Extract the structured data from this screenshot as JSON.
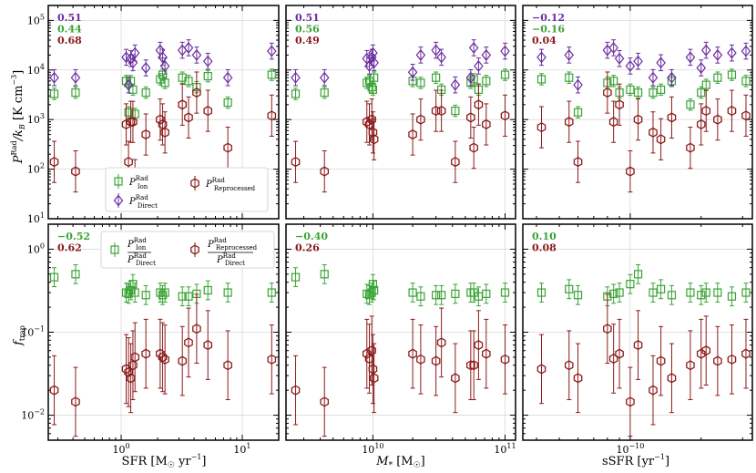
{
  "colors": {
    "ion": "#3aa335",
    "direct": "#6a2c9e",
    "reprocessed": "#8b1a1a",
    "grid": "#d9d9d9"
  },
  "axis_labels": {
    "top_y": "P^Rad/k_B [K cm^-3]",
    "bottom_y": "f_trap",
    "x": [
      "SFR [M☉ yr⁻¹]",
      "M* [M☉]",
      "sSFR [yr⁻¹]"
    ]
  },
  "legend_top": {
    "ion": {
      "main": "P",
      "sup": "Rad",
      "sub": "Ion"
    },
    "direct": {
      "main": "P",
      "sup": "Rad",
      "sub": "Direct"
    },
    "reprocessed": {
      "main": "P",
      "sup": "Rad",
      "sub": "Reprocessed"
    }
  },
  "legend_bottom": {
    "ion_ratio": {
      "num_sub": "Ion",
      "den_sub": "Direct",
      "sup": "Rad"
    },
    "reproc_ratio": {
      "num_sub": "Reprocessed",
      "den_sub": "Direct",
      "sup": "Rad"
    }
  },
  "chart_data": [
    {
      "type": "scatter",
      "panel": "top-left",
      "xlabel": "SFR [M☉ yr⁻¹]",
      "ylabel": "P^Rad/k_B [K cm^-3]",
      "xscale": "log",
      "yscale": "log",
      "xlim": [
        0.25,
        20
      ],
      "ylim": [
        10,
        200000
      ],
      "x_ticks": [
        "10^0",
        "10^1"
      ],
      "y_ticks": [
        "10^1",
        "10^2",
        "10^3",
        "10^4",
        "10^5"
      ],
      "correlations": [
        "0.51",
        "0.44",
        "0.68"
      ],
      "x": [
        0.28,
        0.42,
        1.1,
        1.15,
        1.2,
        1.25,
        1.3,
        1.6,
        2.1,
        2.2,
        2.3,
        3.2,
        3.6,
        4.2,
        5.2,
        7.6,
        17.5
      ],
      "series": [
        {
          "name": "P_Ion",
          "values": [
            3300,
            3500,
            6000,
            1400,
            6000,
            4000,
            1300,
            3500,
            6500,
            8000,
            5500,
            7000,
            6000,
            4500,
            7500,
            2200,
            8000
          ]
        },
        {
          "name": "P_Direct",
          "values": [
            7000,
            7000,
            18000,
            5000,
            17000,
            14000,
            22000,
            11000,
            25000,
            18000,
            12000,
            25000,
            28000,
            20000,
            15000,
            7000,
            24000
          ]
        },
        {
          "name": "P_Reprocessed",
          "values": [
            140,
            90,
            800,
            140,
            900,
            900,
            60,
            500,
            1000,
            800,
            550,
            2000,
            1100,
            3500,
            1500,
            270,
            1200
          ]
        }
      ]
    },
    {
      "type": "scatter",
      "panel": "top-middle",
      "xlabel": "M* [M☉]",
      "xscale": "log",
      "yscale": "log",
      "xlim": [
        2200000000.0,
        120000000000.0
      ],
      "ylim": [
        10,
        200000
      ],
      "x_ticks": [
        "10^10",
        "10^11"
      ],
      "correlations": [
        "0.51",
        "0.56",
        "0.49"
      ],
      "x": [
        2600000000.0,
        4300000000.0,
        9000000000.0,
        9400000000.0,
        9800000000.0,
        10000000000.0,
        10200000000.0,
        20000000000.0,
        23000000000.0,
        30000000000.0,
        33000000000.0,
        42000000000.0,
        55000000000.0,
        58000000000.0,
        63000000000.0,
        72000000000.0,
        100000000000.0
      ],
      "series": [
        {
          "name": "P_Ion",
          "values": [
            3300,
            3500,
            5500,
            6000,
            4500,
            4000,
            7000,
            6000,
            5500,
            7000,
            4000,
            1500,
            5500,
            6500,
            4000,
            6000,
            8000
          ]
        },
        {
          "name": "P_Direct",
          "values": [
            7000,
            7000,
            17000,
            12000,
            18000,
            22000,
            14000,
            9000,
            20000,
            25000,
            18000,
            5000,
            7000,
            28000,
            12000,
            20000,
            24000
          ]
        },
        {
          "name": "P_Reprocessed",
          "values": [
            140,
            90,
            900,
            800,
            1000,
            550,
            400,
            500,
            1000,
            1500,
            1500,
            140,
            1100,
            270,
            2000,
            800,
            1200
          ]
        }
      ]
    },
    {
      "type": "scatter",
      "panel": "top-right",
      "xlabel": "sSFR [yr⁻¹]",
      "xscale": "log",
      "yscale": "log",
      "xlim": [
        3.5e-11,
        3.3e-10
      ],
      "ylim": [
        10,
        200000
      ],
      "x_ticks": [
        "10^-10"
      ],
      "correlations": [
        "−0.12",
        "−0.16",
        "0.04"
      ],
      "x": [
        4.2e-11,
        5.5e-11,
        6e-11,
        8e-11,
        8.5e-11,
        9e-11,
        1e-10,
        1.08e-10,
        1.25e-10,
        1.35e-10,
        1.5e-10,
        1.8e-10,
        2e-10,
        2.1e-10,
        2.35e-10,
        2.7e-10,
        3.1e-10
      ],
      "series": [
        {
          "name": "P_Ion",
          "values": [
            6500,
            7000,
            1400,
            5500,
            6000,
            3500,
            4000,
            3500,
            3500,
            4000,
            6000,
            2000,
            3500,
            5000,
            7000,
            8000,
            6000
          ]
        },
        {
          "name": "P_Direct",
          "values": [
            18000,
            20000,
            5000,
            25000,
            28000,
            17000,
            12000,
            15000,
            7000,
            14000,
            7000,
            18000,
            11000,
            25000,
            20000,
            22000,
            24000
          ]
        },
        {
          "name": "P_Reprocessed",
          "values": [
            700,
            900,
            140,
            3500,
            900,
            2000,
            90,
            1000,
            550,
            400,
            1100,
            270,
            800,
            1500,
            1000,
            1500,
            1200
          ]
        }
      ]
    },
    {
      "type": "scatter",
      "panel": "bottom-left",
      "xlabel": "SFR [M☉ yr⁻¹]",
      "ylabel": "f_trap",
      "xscale": "log",
      "yscale": "log",
      "xlim": [
        0.25,
        20
      ],
      "ylim": [
        0.005,
        2
      ],
      "x_ticks": [
        "10^0",
        "10^1"
      ],
      "y_ticks": [
        "10^-2",
        "10^-1",
        "10^0"
      ],
      "correlations": [
        "−0.52",
        "0.62"
      ],
      "x": [
        0.28,
        0.42,
        1.1,
        1.15,
        1.2,
        1.25,
        1.3,
        1.6,
        2.1,
        2.2,
        2.3,
        3.2,
        3.6,
        4.2,
        5.2,
        7.6,
        17.5
      ],
      "series": [
        {
          "name": "P_Ion/P_Direct",
          "values": [
            0.46,
            0.5,
            0.3,
            0.29,
            0.32,
            0.38,
            0.3,
            0.28,
            0.3,
            0.28,
            0.3,
            0.27,
            0.27,
            0.29,
            0.32,
            0.3,
            0.3
          ]
        },
        {
          "name": "P_Reprocessed/P_Direct",
          "values": [
            0.02,
            0.0145,
            0.036,
            0.033,
            0.028,
            0.04,
            0.05,
            0.055,
            0.055,
            0.05,
            0.047,
            0.045,
            0.075,
            0.11,
            0.07,
            0.04,
            0.047
          ]
        }
      ]
    },
    {
      "type": "scatter",
      "panel": "bottom-middle",
      "xlabel": "M* [M☉]",
      "xscale": "log",
      "yscale": "log",
      "xlim": [
        2200000000.0,
        120000000000.0
      ],
      "ylim": [
        0.005,
        2
      ],
      "x_ticks": [
        "10^10",
        "10^11"
      ],
      "correlations": [
        "−0.40",
        "0.26"
      ],
      "x": [
        2600000000.0,
        4300000000.0,
        9000000000.0,
        9400000000.0,
        9800000000.0,
        10000000000.0,
        10200000000.0,
        20000000000.0,
        23000000000.0,
        30000000000.0,
        33000000000.0,
        42000000000.0,
        55000000000.0,
        58000000000.0,
        63000000000.0,
        72000000000.0,
        100000000000.0
      ],
      "series": [
        {
          "name": "P_Ion/P_Direct",
          "values": [
            0.46,
            0.5,
            0.29,
            0.28,
            0.3,
            0.38,
            0.32,
            0.3,
            0.27,
            0.28,
            0.28,
            0.29,
            0.3,
            0.3,
            0.27,
            0.29,
            0.3
          ]
        },
        {
          "name": "P_Reprocessed/P_Direct",
          "values": [
            0.02,
            0.0145,
            0.055,
            0.048,
            0.06,
            0.036,
            0.028,
            0.055,
            0.047,
            0.045,
            0.075,
            0.028,
            0.04,
            0.04,
            0.07,
            0.055,
            0.047
          ]
        }
      ]
    },
    {
      "type": "scatter",
      "panel": "bottom-right",
      "xlabel": "sSFR [yr⁻¹]",
      "xscale": "log",
      "yscale": "log",
      "xlim": [
        3.5e-11,
        3.3e-10
      ],
      "ylim": [
        0.005,
        2
      ],
      "x_ticks": [
        "10^-10"
      ],
      "correlations": [
        "0.10",
        "0.08"
      ],
      "x": [
        4.2e-11,
        5.5e-11,
        6e-11,
        8e-11,
        8.5e-11,
        9e-11,
        1e-10,
        1.08e-10,
        1.25e-10,
        1.35e-10,
        1.5e-10,
        1.8e-10,
        2e-10,
        2.1e-10,
        2.35e-10,
        2.7e-10,
        3.1e-10
      ],
      "series": [
        {
          "name": "P_Ion/P_Direct",
          "values": [
            0.3,
            0.33,
            0.28,
            0.27,
            0.29,
            0.3,
            0.38,
            0.5,
            0.3,
            0.33,
            0.28,
            0.3,
            0.28,
            0.3,
            0.3,
            0.27,
            0.3
          ]
        },
        {
          "name": "P_Reprocessed/P_Direct",
          "values": [
            0.036,
            0.04,
            0.028,
            0.11,
            0.048,
            0.055,
            0.0145,
            0.07,
            0.02,
            0.045,
            0.028,
            0.04,
            0.055,
            0.06,
            0.045,
            0.047,
            0.055
          ]
        }
      ]
    }
  ]
}
